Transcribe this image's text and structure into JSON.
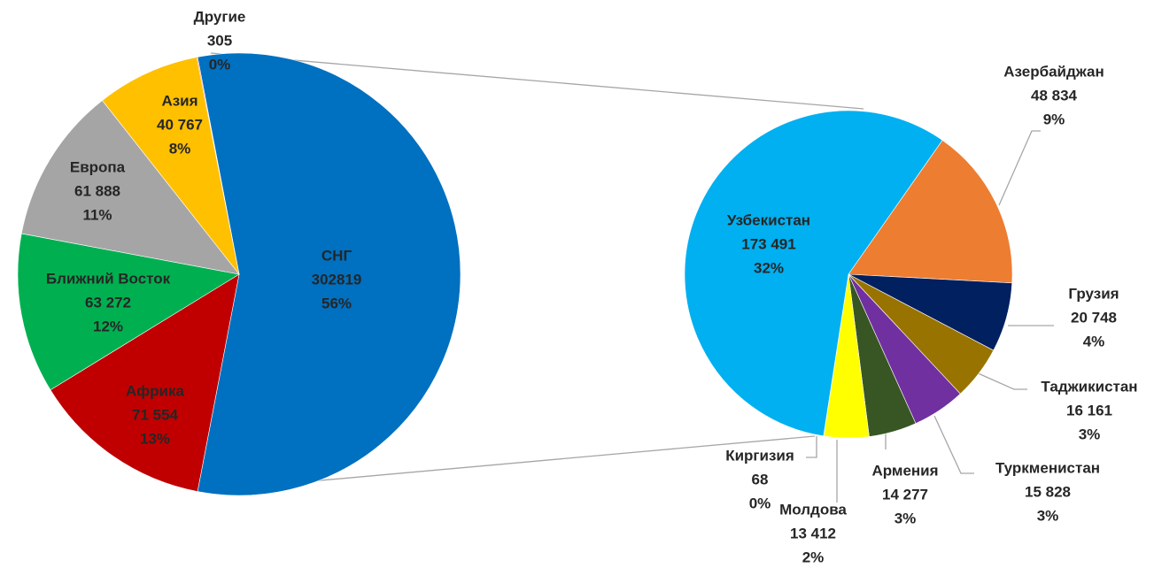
{
  "chart_data": [
    {
      "type": "pie",
      "categories": [
        "СНГ",
        "Африка",
        "Ближний Восток",
        "Европа",
        "Азия",
        "Другие"
      ],
      "values": [
        302819,
        71554,
        63272,
        61888,
        40767,
        305
      ],
      "value_labels": [
        "302819",
        "71 554",
        "63 272",
        "61 888",
        "40 767",
        "305"
      ],
      "percent_labels": [
        "56%",
        "13%",
        "12%",
        "11%",
        "8%",
        "0%"
      ],
      "colors": [
        "#0070c0",
        "#c00000",
        "#00b050",
        "#a5a5a5",
        "#ffc000",
        "#ff0000"
      ]
    },
    {
      "type": "pie",
      "categories": [
        "Азербайджан",
        "Грузия",
        "Таджикистан",
        "Туркменистан",
        "Армения",
        "Молдова",
        "Киргизия",
        "Узбекистан"
      ],
      "values": [
        48834,
        20748,
        16161,
        15828,
        14277,
        13412,
        68,
        173491
      ],
      "value_labels": [
        "48 834",
        "20 748",
        "16 161",
        "15 828",
        "14 277",
        "13 412",
        "68",
        "173 491"
      ],
      "percent_labels": [
        "9%",
        "4%",
        "3%",
        "3%",
        "3%",
        "2%",
        "0%",
        "32%"
      ],
      "colors": [
        "#ed7d31",
        "#002060",
        "#997300",
        "#7030a0",
        "#375623",
        "#ffff00",
        "#ff0000",
        "#00b0f0"
      ]
    }
  ]
}
